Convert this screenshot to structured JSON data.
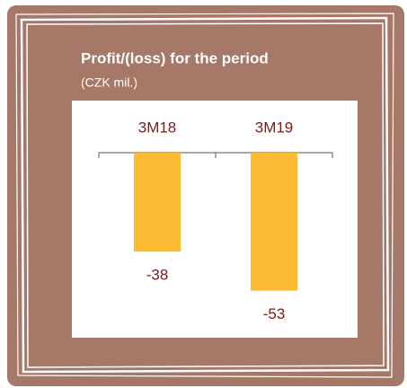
{
  "chart_data": {
    "type": "bar",
    "title": "Profit/(loss) for the period",
    "subtitle": "(CZK mil.)",
    "categories": [
      "3M18",
      "3M19"
    ],
    "values": [
      -38,
      -53
    ],
    "color": "#fbbc34"
  }
}
